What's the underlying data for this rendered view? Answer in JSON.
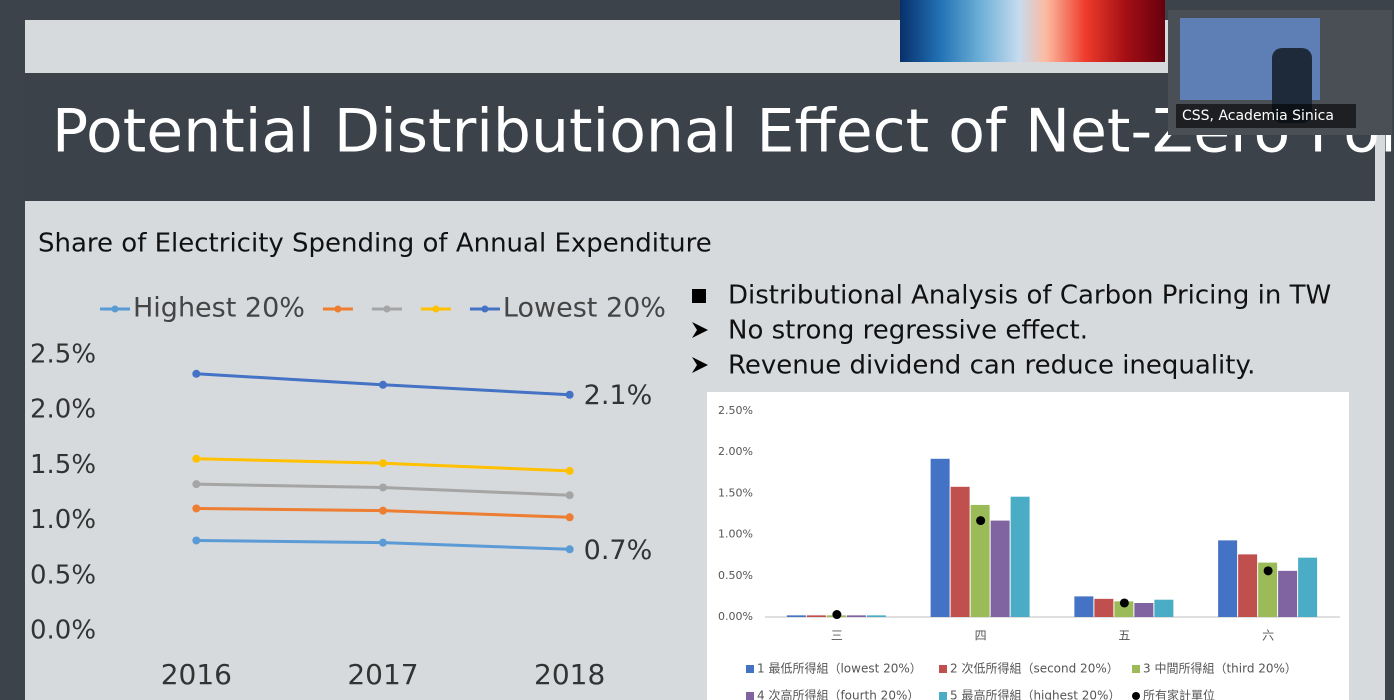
{
  "slide": {
    "title": "Potential Distributional Effect of Net-Zero Policy",
    "bullets": [
      "Distributional Analysis of Carbon Pricing in TW",
      "No strong regressive effect.",
      "Revenue dividend can reduce inequality."
    ]
  },
  "video": {
    "caption": "CSS, Academia Sinica"
  },
  "chart_data": [
    {
      "type": "line",
      "title": "Share of Electricity Spending of Annual Expenditure",
      "categories": [
        "2016",
        "2017",
        "2018"
      ],
      "ylim": [
        0,
        2.5
      ],
      "yticks": [
        {
          "value": 0,
          "label": "0.0%"
        },
        {
          "value": 0.5,
          "label": "0.5%"
        },
        {
          "value": 1,
          "label": "1.0%"
        },
        {
          "value": 1.5,
          "label": "1.5%"
        },
        {
          "value": 2,
          "label": "2.0%"
        },
        {
          "value": 2.5,
          "label": "2.5%"
        }
      ],
      "grid": false,
      "series": [
        {
          "name": "Highest 20%",
          "color": "#5b9bd5",
          "values": [
            0.82,
            0.8,
            0.74
          ],
          "value_labels": [
            null,
            null,
            "0.7%"
          ]
        },
        {
          "color": "#ed7d31",
          "values": [
            1.11,
            1.09,
            1.03
          ]
        },
        {
          "color": "#a5a5a5",
          "values": [
            1.33,
            1.3,
            1.23
          ]
        },
        {
          "color": "#ffc000",
          "values": [
            1.56,
            1.52,
            1.45
          ]
        },
        {
          "name": "Lowest 20%",
          "color": "#4472c4",
          "values": [
            2.33,
            2.23,
            2.14
          ],
          "value_labels": [
            null,
            null,
            "2.1%"
          ]
        }
      ]
    },
    {
      "type": "bar",
      "categories": [
        "三",
        "四",
        "五",
        "六"
      ],
      "ylim": [
        0,
        2.5
      ],
      "yticks": [
        {
          "value": 0,
          "label": "0.00%"
        },
        {
          "value": 0.5,
          "label": "0.50%"
        },
        {
          "value": 1,
          "label": "1.00%"
        },
        {
          "value": 1.5,
          "label": "1.50%"
        },
        {
          "value": 2,
          "label": "2.00%"
        },
        {
          "value": 2.5,
          "label": "2.50%"
        }
      ],
      "grid": false,
      "series": [
        {
          "name": "1 最低所得組（lowest 20%）",
          "color": "#4472c4",
          "values": [
            0.02,
            1.92,
            0.25,
            0.93
          ]
        },
        {
          "name": "2 次低所得組（second 20%）",
          "color": "#c0504d",
          "values": [
            0.02,
            1.58,
            0.22,
            0.76
          ]
        },
        {
          "name": "3 中間所得組（third 20%）",
          "color": "#9bbb59",
          "values": [
            0.02,
            1.36,
            0.19,
            0.66
          ]
        },
        {
          "name": "4 次高所得組（fourth 20%）",
          "color": "#8064a2",
          "values": [
            0.02,
            1.17,
            0.17,
            0.56
          ]
        },
        {
          "name": "5 最高所得組（highest 20%）",
          "color": "#4bacc6",
          "values": [
            0.02,
            1.46,
            0.21,
            0.72
          ]
        },
        {
          "name": "所有家計單位",
          "type": "scatter",
          "color": "#000000",
          "values": [
            0.03,
            1.17,
            0.17,
            0.56
          ]
        }
      ]
    }
  ]
}
